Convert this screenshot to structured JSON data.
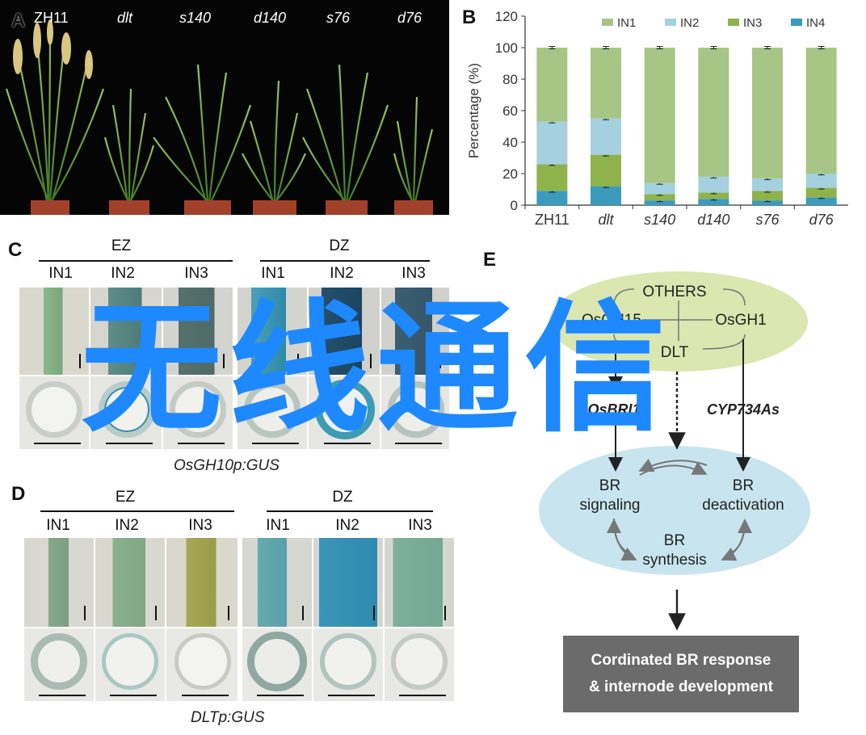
{
  "panels": {
    "a": "A",
    "b": "B",
    "c": "C",
    "d": "D",
    "e": "E"
  },
  "panelA": {
    "labels": [
      "ZH11",
      "dlt",
      "s140",
      "d140",
      "s76",
      "d76"
    ]
  },
  "chart_data": {
    "type": "bar",
    "stacked": true,
    "categories": [
      "ZH11",
      "dlt",
      "s140",
      "d140",
      "s76",
      "d76"
    ],
    "ylabel": "Percentage (%)",
    "xlabel": "",
    "ylim": [
      0,
      120
    ],
    "yticks": [
      0,
      20,
      40,
      60,
      80,
      100,
      120
    ],
    "legend_position": "top",
    "grid": false,
    "series": [
      {
        "name": "IN4",
        "color": "#3a9bbd",
        "values": [
          9,
          12,
          3,
          4,
          3,
          5
        ]
      },
      {
        "name": "IN3",
        "color": "#8fb34a",
        "values": [
          17,
          20,
          4,
          4,
          6,
          6
        ]
      },
      {
        "name": "IN2",
        "color": "#a4d0df",
        "values": [
          27,
          23,
          7,
          10,
          8,
          9
        ]
      },
      {
        "name": "IN1",
        "color": "#a7c585",
        "values": [
          47,
          45,
          86,
          82,
          83,
          80
        ]
      }
    ]
  },
  "panelC": {
    "ez": "EZ",
    "dz": "DZ",
    "cols": [
      "IN1",
      "IN2",
      "IN3",
      "IN1",
      "IN2",
      "IN3"
    ],
    "caption": "OsGH10p:GUS"
  },
  "panelD": {
    "ez": "EZ",
    "dz": "DZ",
    "cols": [
      "IN1",
      "IN2",
      "IN3",
      "IN1",
      "IN2",
      "IN3"
    ],
    "caption": "DLTp:GUS"
  },
  "panelE": {
    "others": "OTHERS",
    "gh15": "OsGH15",
    "gh1": "OsGH1",
    "dlt": "DLT",
    "bri1": "OsBRI1",
    "cyp": "CYP734As",
    "br_signaling": "BR\nsignaling",
    "br_deactivation": "BR\ndeactivation",
    "br_synthesis": "BR\nsynthesis",
    "response_line1": "Cordinated BR response",
    "response_line2": "& internode development"
  },
  "watermark": "无线通信",
  "colors": {
    "green_ellipse": "#dbe6b0",
    "blue_ellipse": "#c8e5ef",
    "watermark": "#1e88ff"
  }
}
